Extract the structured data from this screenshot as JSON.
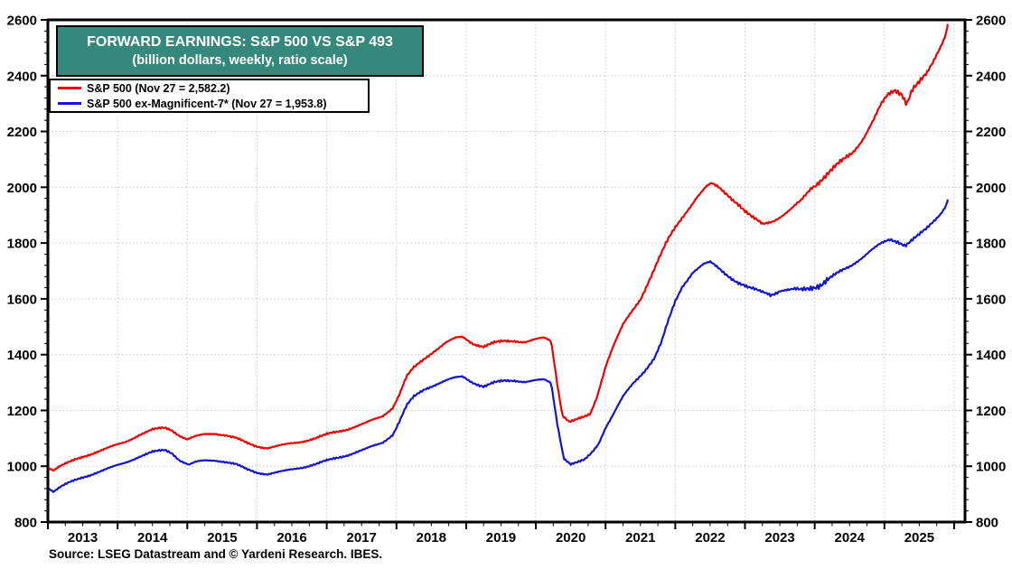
{
  "chart_data": {
    "type": "line",
    "title": "FORWARD EARNINGS: S&P 500 VS S&P 493",
    "subtitle": "(billion dollars, weekly, ratio scale)",
    "source": "Source: LSEG Datastream and © Yardeni Research. IBES.",
    "colors": {
      "title_bg": "#35897c",
      "title_text": "#ffffff",
      "grid": "#c5c5c5",
      "axis": "#000000"
    },
    "y_axis": {
      "min": 800,
      "max": 2600,
      "major_step": 200,
      "minor_step": 40,
      "ticks": [
        800,
        1000,
        1200,
        1400,
        1600,
        1800,
        2000,
        2200,
        2400,
        2600
      ],
      "sides": [
        "left",
        "right"
      ]
    },
    "x_axis": {
      "start": 2013.0,
      "end": 2026.155,
      "minor_step_years": 0.25,
      "major_tick_years": [
        2013,
        2014,
        2015,
        2016,
        2017,
        2018,
        2019,
        2020,
        2021,
        2022,
        2023,
        2024,
        2025,
        2026
      ],
      "year_label_years": [
        2013,
        2014,
        2015,
        2016,
        2017,
        2018,
        2019,
        2020,
        2021,
        2022,
        2023,
        2024,
        2025
      ]
    },
    "grid": {
      "h_lines": [
        1000,
        1200,
        1400,
        1600,
        1800,
        2000,
        2200,
        2400
      ],
      "v_lines_jan": [
        2014,
        2015,
        2016,
        2017,
        2018,
        2019,
        2020,
        2021,
        2022,
        2023,
        2024,
        2025,
        2026
      ],
      "style": "dotted"
    },
    "series": [
      {
        "name": "S&P 500",
        "legend_label": "S&P 500 (Nov 27 = 2,582.2)",
        "color": "#ec0202",
        "line_width": 2.2,
        "last_point": {
          "date": "Nov 27",
          "value": 2582.2
        },
        "noise_base": 3.5,
        "noise_boosts": [
          [
            2024.0,
            2025.6,
            1.35
          ]
        ],
        "anchors": [
          [
            2013.02,
            995
          ],
          [
            2013.08,
            987
          ],
          [
            2013.17,
            1000
          ],
          [
            2013.3,
            1013
          ],
          [
            2013.5,
            1034
          ],
          [
            2013.7,
            1052
          ],
          [
            2013.9,
            1068
          ],
          [
            2014.1,
            1086
          ],
          [
            2014.3,
            1112
          ],
          [
            2014.5,
            1130
          ],
          [
            2014.68,
            1138
          ],
          [
            2014.78,
            1130
          ],
          [
            2014.88,
            1112
          ],
          [
            2015.0,
            1096
          ],
          [
            2015.12,
            1106
          ],
          [
            2015.25,
            1114
          ],
          [
            2015.4,
            1118
          ],
          [
            2015.55,
            1112
          ],
          [
            2015.7,
            1100
          ],
          [
            2015.85,
            1083
          ],
          [
            2016.0,
            1072
          ],
          [
            2016.15,
            1066
          ],
          [
            2016.35,
            1074
          ],
          [
            2016.6,
            1087
          ],
          [
            2016.85,
            1101
          ],
          [
            2017.05,
            1117
          ],
          [
            2017.3,
            1134
          ],
          [
            2017.55,
            1153
          ],
          [
            2017.8,
            1180
          ],
          [
            2017.95,
            1212
          ],
          [
            2018.05,
            1262
          ],
          [
            2018.15,
            1322
          ],
          [
            2018.25,
            1352
          ],
          [
            2018.4,
            1386
          ],
          [
            2018.55,
            1416
          ],
          [
            2018.7,
            1441
          ],
          [
            2018.85,
            1458
          ],
          [
            2018.95,
            1463
          ],
          [
            2019.1,
            1441
          ],
          [
            2019.25,
            1429
          ],
          [
            2019.4,
            1441
          ],
          [
            2019.55,
            1448
          ],
          [
            2019.7,
            1451
          ],
          [
            2019.85,
            1446
          ],
          [
            2020.0,
            1453
          ],
          [
            2020.12,
            1459
          ],
          [
            2020.22,
            1449
          ],
          [
            2020.3,
            1310
          ],
          [
            2020.38,
            1185
          ],
          [
            2020.48,
            1160
          ],
          [
            2020.58,
            1166
          ],
          [
            2020.68,
            1174
          ],
          [
            2020.78,
            1186
          ],
          [
            2020.88,
            1252
          ],
          [
            2021.0,
            1360
          ],
          [
            2021.1,
            1425
          ],
          [
            2021.25,
            1505
          ],
          [
            2021.4,
            1562
          ],
          [
            2021.5,
            1600
          ],
          [
            2021.65,
            1682
          ],
          [
            2021.8,
            1762
          ],
          [
            2021.9,
            1812
          ],
          [
            2022.0,
            1855
          ],
          [
            2022.15,
            1912
          ],
          [
            2022.3,
            1962
          ],
          [
            2022.45,
            2000
          ],
          [
            2022.52,
            2010
          ],
          [
            2022.62,
            2000
          ],
          [
            2022.75,
            1976
          ],
          [
            2022.9,
            1941
          ],
          [
            2023.0,
            1912
          ],
          [
            2023.1,
            1890
          ],
          [
            2023.25,
            1869
          ],
          [
            2023.4,
            1882
          ],
          [
            2023.55,
            1900
          ],
          [
            2023.65,
            1916
          ],
          [
            2023.8,
            1950
          ],
          [
            2023.95,
            2000
          ],
          [
            2024.1,
            2030
          ],
          [
            2024.25,
            2060
          ],
          [
            2024.4,
            2094
          ],
          [
            2024.55,
            2130
          ],
          [
            2024.7,
            2180
          ],
          [
            2024.85,
            2240
          ],
          [
            2024.95,
            2290
          ],
          [
            2025.05,
            2330
          ],
          [
            2025.15,
            2352
          ],
          [
            2025.25,
            2340
          ],
          [
            2025.32,
            2303
          ],
          [
            2025.4,
            2350
          ],
          [
            2025.5,
            2371
          ],
          [
            2025.6,
            2400
          ],
          [
            2025.7,
            2450
          ],
          [
            2025.8,
            2506
          ],
          [
            2025.87,
            2546
          ],
          [
            2025.905,
            2582.2
          ]
        ]
      },
      {
        "name": "S&P 500 ex-Magnificent-7*",
        "legend_label": "S&P 500 ex-Magnificent-7* (Nov 27 = 1,953.8)",
        "color": "#1414cc",
        "line_width": 2.2,
        "last_point": {
          "date": "Nov 27",
          "value": 1953.8
        },
        "noise_base": 3.5,
        "noise_boosts": [
          [
            2023.35,
            2024.2,
            2.2
          ]
        ],
        "anchors": [
          [
            2013.02,
            921
          ],
          [
            2013.08,
            910
          ],
          [
            2013.17,
            925
          ],
          [
            2013.3,
            940
          ],
          [
            2013.5,
            960
          ],
          [
            2013.7,
            978
          ],
          [
            2013.9,
            994
          ],
          [
            2014.1,
            1012
          ],
          [
            2014.3,
            1034
          ],
          [
            2014.5,
            1050
          ],
          [
            2014.68,
            1058
          ],
          [
            2014.78,
            1048
          ],
          [
            2014.88,
            1024
          ],
          [
            2015.02,
            1005
          ],
          [
            2015.12,
            1014
          ],
          [
            2015.25,
            1020
          ],
          [
            2015.4,
            1022
          ],
          [
            2015.55,
            1016
          ],
          [
            2015.7,
            1006
          ],
          [
            2015.85,
            989
          ],
          [
            2016.0,
            978
          ],
          [
            2016.15,
            972
          ],
          [
            2016.35,
            980
          ],
          [
            2016.6,
            994
          ],
          [
            2016.85,
            1008
          ],
          [
            2017.05,
            1023
          ],
          [
            2017.3,
            1041
          ],
          [
            2017.55,
            1060
          ],
          [
            2017.8,
            1085
          ],
          [
            2017.95,
            1115
          ],
          [
            2018.05,
            1165
          ],
          [
            2018.15,
            1218
          ],
          [
            2018.25,
            1248
          ],
          [
            2018.4,
            1276
          ],
          [
            2018.55,
            1293
          ],
          [
            2018.7,
            1306
          ],
          [
            2018.85,
            1316
          ],
          [
            2018.95,
            1321
          ],
          [
            2019.1,
            1301
          ],
          [
            2019.25,
            1286
          ],
          [
            2019.4,
            1298
          ],
          [
            2019.55,
            1306
          ],
          [
            2019.7,
            1309
          ],
          [
            2019.85,
            1303
          ],
          [
            2020.0,
            1306
          ],
          [
            2020.12,
            1309
          ],
          [
            2020.22,
            1299
          ],
          [
            2020.3,
            1165
          ],
          [
            2020.4,
            1030
          ],
          [
            2020.5,
            1007
          ],
          [
            2020.6,
            1013
          ],
          [
            2020.7,
            1022
          ],
          [
            2020.8,
            1048
          ],
          [
            2020.9,
            1082
          ],
          [
            2021.0,
            1140
          ],
          [
            2021.1,
            1182
          ],
          [
            2021.25,
            1248
          ],
          [
            2021.4,
            1298
          ],
          [
            2021.55,
            1340
          ],
          [
            2021.7,
            1388
          ],
          [
            2021.8,
            1442
          ],
          [
            2021.9,
            1520
          ],
          [
            2022.0,
            1590
          ],
          [
            2022.1,
            1645
          ],
          [
            2022.25,
            1697
          ],
          [
            2022.4,
            1722
          ],
          [
            2022.5,
            1729
          ],
          [
            2022.6,
            1713
          ],
          [
            2022.75,
            1686
          ],
          [
            2022.9,
            1659
          ],
          [
            2023.05,
            1638
          ],
          [
            2023.2,
            1628
          ],
          [
            2023.35,
            1620
          ],
          [
            2023.5,
            1633
          ],
          [
            2023.65,
            1626
          ],
          [
            2023.8,
            1628
          ],
          [
            2023.95,
            1645
          ],
          [
            2024.1,
            1656
          ],
          [
            2024.3,
            1686
          ],
          [
            2024.5,
            1716
          ],
          [
            2024.65,
            1745
          ],
          [
            2024.8,
            1772
          ],
          [
            2024.95,
            1795
          ],
          [
            2025.08,
            1812
          ],
          [
            2025.2,
            1806
          ],
          [
            2025.3,
            1794
          ],
          [
            2025.4,
            1812
          ],
          [
            2025.5,
            1828
          ],
          [
            2025.6,
            1848
          ],
          [
            2025.7,
            1876
          ],
          [
            2025.8,
            1906
          ],
          [
            2025.87,
            1932
          ],
          [
            2025.905,
            1953.8
          ]
        ]
      }
    ]
  }
}
